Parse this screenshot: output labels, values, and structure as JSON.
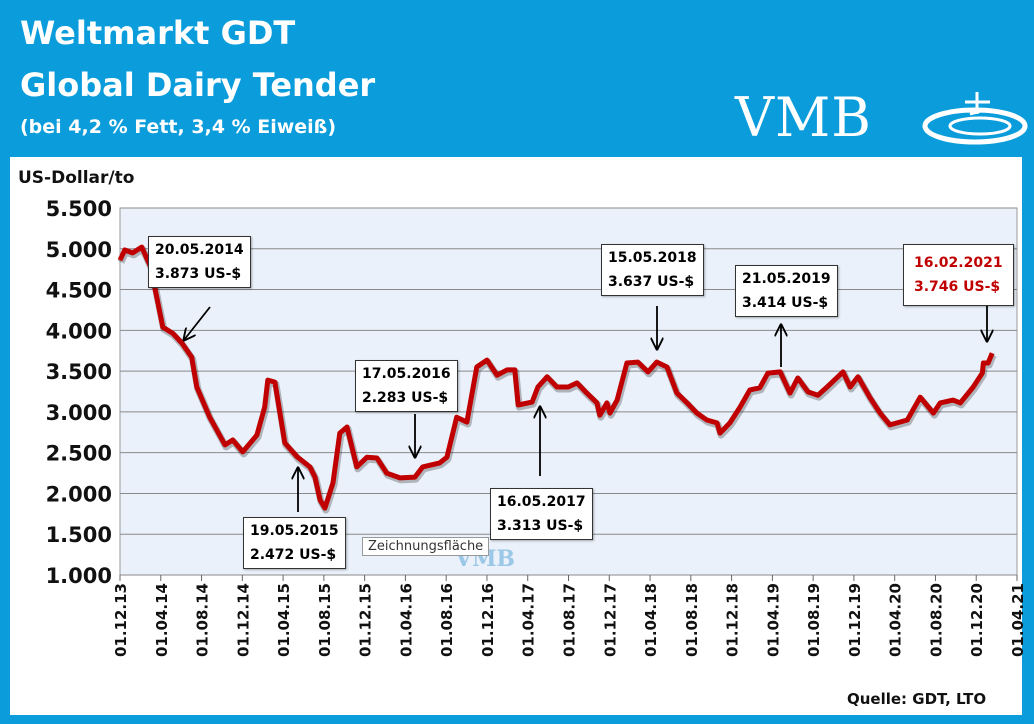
{
  "header": {
    "title_line1": "Weltmarkt GDT",
    "title_line2": "Global Dairy Tender",
    "subtitle": "(bei 4,2 % Fett, 3,4 % Eiweiß)",
    "logo_text": "VMB"
  },
  "colors": {
    "header_bg": "#0b9ddb",
    "plot_bg": "#eaf1fa",
    "line": "#c00000",
    "highlight_text": "#c00000"
  },
  "tooltip": "Zeichnungsfläche",
  "chart_data": {
    "type": "line",
    "ylabel": "US-Dollar/to",
    "source": "Quelle: GDT, LTO",
    "ylim": [
      1000,
      5500
    ],
    "xlim": [
      "2013-12-01",
      "2021-04-01"
    ],
    "grid": true,
    "y_ticks": [
      "5.500",
      "5.000",
      "4.500",
      "4.000",
      "3.500",
      "3.000",
      "2.500",
      "2.000",
      "1.500",
      "1.000"
    ],
    "y_tick_values": [
      5500,
      5000,
      4500,
      4000,
      3500,
      3000,
      2500,
      2000,
      1500,
      1000
    ],
    "x_ticks": [
      "01.12.13",
      "01.04.14",
      "01.08.14",
      "01.12.14",
      "01.04.15",
      "01.08.15",
      "01.12.15",
      "01.04.16",
      "01.08.16",
      "01.12.16",
      "01.04.17",
      "01.08.17",
      "01.12.17",
      "01.04.18",
      "01.08.18",
      "01.12.18",
      "01.04.19",
      "01.08.19",
      "01.12.19",
      "01.04.20",
      "01.08.20",
      "01.12.20",
      "01.04.21"
    ],
    "series": [
      {
        "x": [
          "2013-12-01",
          "2013-12-15",
          "2014-01-08",
          "2014-02-05",
          "2014-03-01",
          "2014-04-07",
          "2014-05-06",
          "2014-06-03",
          "2014-07-02",
          "2014-07-17",
          "2014-08-25",
          "2014-10-10",
          "2014-11-03",
          "2014-12-02",
          "2015-01-14",
          "2015-02-07",
          "2015-02-16",
          "2015-03-07",
          "2015-04-06",
          "2015-05-12",
          "2015-06-20",
          "2015-07-05",
          "2015-07-20",
          "2015-08-04",
          "2015-08-28",
          "2015-09-18",
          "2015-10-09",
          "2015-11-08",
          "2015-12-08",
          "2016-01-07",
          "2016-02-06",
          "2016-03-15",
          "2016-04-29",
          "2016-05-22",
          "2016-07-12",
          "2016-08-03",
          "2016-09-02",
          "2016-10-02",
          "2016-11-01",
          "2016-12-01",
          "2017-01-01",
          "2017-01-30",
          "2017-02-23",
          "2017-03-03",
          "2017-04-14",
          "2017-05-01",
          "2017-05-28",
          "2017-06-27",
          "2017-07-30",
          "2017-08-26",
          "2017-09-25",
          "2017-10-25",
          "2017-11-03",
          "2017-11-24",
          "2017-12-03",
          "2017-12-24",
          "2018-01-23",
          "2018-02-25",
          "2018-03-25",
          "2018-04-21",
          "2018-05-21",
          "2018-06-20",
          "2018-07-20",
          "2018-08-19",
          "2018-09-18",
          "2018-10-18",
          "2018-10-27",
          "2018-11-26",
          "2018-12-26",
          "2019-01-25",
          "2019-02-24",
          "2019-03-18",
          "2019-04-24",
          "2019-05-23",
          "2019-06-16",
          "2019-07-16",
          "2019-08-15",
          "2019-09-12",
          "2019-10-29",
          "2019-11-20",
          "2019-12-13",
          "2020-01-19",
          "2020-02-18",
          "2020-03-17",
          "2020-05-08",
          "2020-06-16",
          "2020-07-25",
          "2020-08-15",
          "2020-09-23",
          "2020-10-14",
          "2020-11-22",
          "2020-12-19",
          "2020-12-22",
          "2021-01-06",
          "2021-01-18"
        ],
        "y": [
          4860,
          4985,
          4950,
          5020,
          4780,
          4040,
          3965,
          3845,
          3670,
          3305,
          2935,
          2595,
          2655,
          2510,
          2715,
          3060,
          3390,
          3365,
          2620,
          2450,
          2325,
          2200,
          1920,
          1820,
          2130,
          2740,
          2815,
          2325,
          2445,
          2435,
          2250,
          2190,
          2200,
          2325,
          2375,
          2445,
          2935,
          2875,
          3550,
          3635,
          3450,
          3515,
          3515,
          3085,
          3120,
          3305,
          3430,
          3305,
          3305,
          3355,
          3230,
          3110,
          2960,
          3110,
          2985,
          3145,
          3600,
          3610,
          3490,
          3610,
          3550,
          3230,
          3110,
          2985,
          2900,
          2865,
          2740,
          2865,
          3060,
          3270,
          3295,
          3475,
          3490,
          3230,
          3415,
          3245,
          3205,
          3305,
          3490,
          3305,
          3430,
          3170,
          2985,
          2840,
          2900,
          3180,
          2985,
          3110,
          3145,
          3110,
          3305,
          3475,
          3600,
          3600,
          3720
        ]
      }
    ],
    "annotations": [
      {
        "date": "20.05.2014",
        "value": "3.873 US-$"
      },
      {
        "date": "19.05.2015",
        "value": "2.472 US-$"
      },
      {
        "date": "17.05.2016",
        "value": "2.283 US-$"
      },
      {
        "date": "16.05.2017",
        "value": "3.313 US-$"
      },
      {
        "date": "15.05.2018",
        "value": "3.637 US-$"
      },
      {
        "date": "21.05.2019",
        "value": "3.414 US-$"
      },
      {
        "date": "16.02.2021",
        "value": "3.746 US-$",
        "highlight": true
      }
    ]
  }
}
